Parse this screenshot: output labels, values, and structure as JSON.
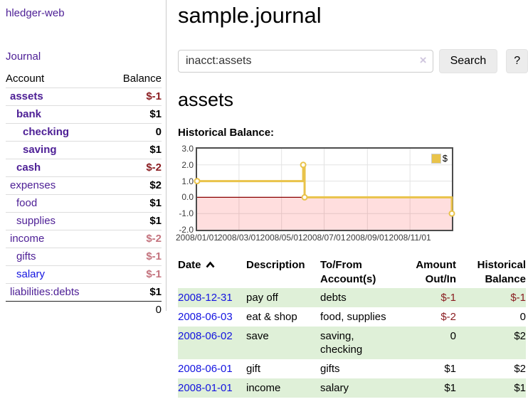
{
  "colors": {
    "link_purple": "#4e2096",
    "link_blue": "#1414e0",
    "neg_strong": "#8b1e22",
    "neg_soft": "#c4737e",
    "row_stripe_green": "#dff0d8",
    "button_bg": "#ececec",
    "divider_gray": "#cccccc"
  },
  "sidebar": {
    "app_title": "hledger-web",
    "journal_label": "Journal",
    "table": {
      "account_header": "Account",
      "balance_header": "Balance"
    },
    "accounts": [
      {
        "name": "assets",
        "indent": 0,
        "bold": true,
        "balance": "$-1",
        "balance_style": "neg-strong"
      },
      {
        "name": "bank",
        "indent": 1,
        "bold": true,
        "balance": "$1"
      },
      {
        "name": "checking",
        "indent": 2,
        "bold": true,
        "balance": "0"
      },
      {
        "name": "saving",
        "indent": 2,
        "bold": true,
        "balance": "$1"
      },
      {
        "name": "cash",
        "indent": 1,
        "bold": true,
        "balance": "$-2",
        "balance_style": "neg-strong"
      },
      {
        "name": "expenses",
        "indent": 0,
        "bold": false,
        "balance": "$2"
      },
      {
        "name": "food",
        "indent": 1,
        "bold": false,
        "balance": "$1"
      },
      {
        "name": "supplies",
        "indent": 1,
        "bold": false,
        "balance": "$1"
      },
      {
        "name": "income",
        "indent": 0,
        "bold": false,
        "balance": "$-2",
        "balance_style": "neg-soft"
      },
      {
        "name": "gifts",
        "indent": 1,
        "bold": false,
        "balance": "$-1",
        "balance_style": "neg-soft"
      },
      {
        "name": "salary",
        "indent": 1,
        "bold": false,
        "link_color": "blue",
        "balance": "$-1",
        "balance_style": "neg-soft"
      },
      {
        "name": "liabilities:debts",
        "indent": 0,
        "bold": false,
        "balance": "$1"
      }
    ],
    "total": "0"
  },
  "header": {
    "title": "sample.journal",
    "search": {
      "value": "inacct:assets",
      "clear_icon": "×",
      "search_label": "Search",
      "help_label": "?"
    }
  },
  "main": {
    "section_title": "assets",
    "chart_label": "Historical Balance:"
  },
  "chart_data": {
    "type": "line",
    "title": "Historical Balance",
    "step": true,
    "series": [
      {
        "name": "$",
        "color": "#e9c34a",
        "points": [
          [
            "2008-01-01",
            1
          ],
          [
            "2008-06-01",
            2
          ],
          [
            "2008-06-03",
            0
          ],
          [
            "2008-12-31",
            -1
          ]
        ]
      }
    ],
    "y_ticks": [
      3.0,
      2.0,
      1.0,
      0.0,
      -1.0,
      -2.0
    ],
    "x_ticks": [
      "2008/01/01",
      "2008/03/01",
      "2008/05/01",
      "2008/07/01",
      "2008/09/01",
      "2008/11/01"
    ],
    "ylim": [
      -2,
      3
    ],
    "x_span_days": 365,
    "grid": true,
    "grid_color": "#e3e3e3",
    "negative_fill": "rgba(255,0,0,0.13)",
    "zero_line_color": "#8b0000",
    "legend": {
      "label": "$",
      "position": "top-right"
    }
  },
  "transactions": {
    "headers": {
      "date": "Date",
      "description": "Description",
      "accounts": "To/From\nAccount(s)",
      "amount": "Amount\nOut/In",
      "balance": "Historical\nBalance"
    },
    "rows": [
      {
        "date": "2008-12-31",
        "description": "pay off",
        "accounts": "debts",
        "amount": "$-1",
        "amount_negative": true,
        "balance": "$-1",
        "balance_negative": true
      },
      {
        "date": "2008-06-03",
        "description": "eat & shop",
        "accounts": "food, supplies",
        "amount": "$-2",
        "amount_negative": true,
        "balance": "0",
        "balance_negative": false
      },
      {
        "date": "2008-06-02",
        "description": "save",
        "accounts": "saving,\nchecking",
        "amount": "0",
        "amount_negative": false,
        "balance": "$2",
        "balance_negative": false
      },
      {
        "date": "2008-06-01",
        "description": "gift",
        "accounts": "gifts",
        "amount": "$1",
        "amount_negative": false,
        "balance": "$2",
        "balance_negative": false
      },
      {
        "date": "2008-01-01",
        "description": "income",
        "accounts": "salary",
        "amount": "$1",
        "amount_negative": false,
        "balance": "$1",
        "balance_negative": false
      }
    ]
  }
}
